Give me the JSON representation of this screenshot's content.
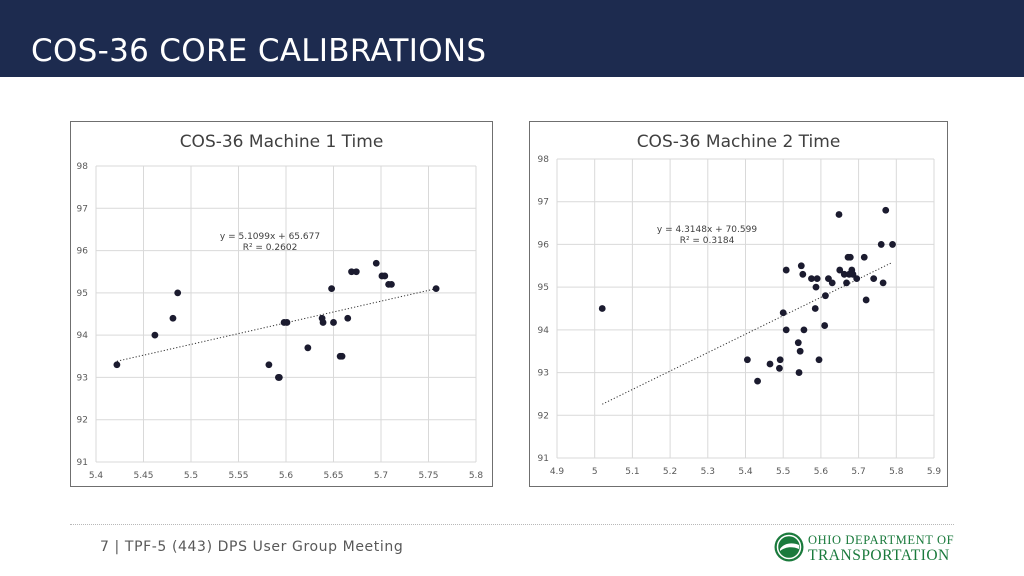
{
  "header": {
    "title": "COS-36 CORE CALIBRATIONS",
    "background": "#1d2b4f"
  },
  "footer": {
    "text": "7 | TPF-5 (443) DPS User Group Meeting"
  },
  "logo": {
    "line1": "OHIO DEPARTMENT OF",
    "line2": "TRANSPORTATION",
    "color": "#1a7a3c"
  },
  "chart_data": [
    {
      "type": "scatter",
      "title": "COS-36 Machine 1 Time",
      "xlim": [
        5.4,
        5.8
      ],
      "ylim": [
        91,
        98
      ],
      "xticks": [
        "5.4",
        "5.45",
        "5.5",
        "5.55",
        "5.6",
        "5.65",
        "5.7",
        "5.75",
        "5.8"
      ],
      "yticks": [
        "91",
        "92",
        "93",
        "94",
        "95",
        "96",
        "97",
        "98"
      ],
      "grid": true,
      "marker_color": "#1b1b2f",
      "trendline": {
        "type": "linear",
        "equation": "y = 5.1099x + 65.677",
        "r2": "R² = 0.2602",
        "slope": 5.1099,
        "intercept": 65.677
      },
      "points": [
        [
          5.422,
          93.3
        ],
        [
          5.462,
          94.0
        ],
        [
          5.481,
          94.4
        ],
        [
          5.486,
          95.0
        ],
        [
          5.582,
          93.3
        ],
        [
          5.592,
          93.0
        ],
        [
          5.593,
          93.0
        ],
        [
          5.598,
          94.3
        ],
        [
          5.601,
          94.3
        ],
        [
          5.623,
          93.7
        ],
        [
          5.638,
          94.4
        ],
        [
          5.639,
          94.3
        ],
        [
          5.648,
          95.1
        ],
        [
          5.65,
          94.3
        ],
        [
          5.657,
          93.5
        ],
        [
          5.659,
          93.5
        ],
        [
          5.665,
          94.4
        ],
        [
          5.669,
          95.5
        ],
        [
          5.674,
          95.5
        ],
        [
          5.695,
          95.7
        ],
        [
          5.701,
          95.4
        ],
        [
          5.704,
          95.4
        ],
        [
          5.708,
          95.2
        ],
        [
          5.711,
          95.2
        ],
        [
          5.758,
          95.1
        ]
      ]
    },
    {
      "type": "scatter",
      "title": "COS-36 Machine 2 Time",
      "xlim": [
        4.9,
        5.9
      ],
      "ylim": [
        91,
        98
      ],
      "xticks": [
        "4.9",
        "5",
        "5.1",
        "5.2",
        "5.3",
        "5.4",
        "5.5",
        "5.6",
        "5.7",
        "5.8",
        "5.9"
      ],
      "yticks": [
        "91",
        "92",
        "93",
        "94",
        "95",
        "96",
        "97",
        "98"
      ],
      "grid": true,
      "marker_color": "#1b1b2f",
      "trendline": {
        "type": "linear",
        "equation": "y = 4.3148x + 70.599",
        "r2": "R² = 0.3184",
        "slope": 4.3148,
        "intercept": 70.599
      },
      "points": [
        [
          5.02,
          94.5
        ],
        [
          5.405,
          93.3
        ],
        [
          5.432,
          92.8
        ],
        [
          5.465,
          93.2
        ],
        [
          5.49,
          93.1
        ],
        [
          5.492,
          93.3
        ],
        [
          5.5,
          94.4
        ],
        [
          5.508,
          95.4
        ],
        [
          5.508,
          94.0
        ],
        [
          5.54,
          93.7
        ],
        [
          5.542,
          93.0
        ],
        [
          5.545,
          93.5
        ],
        [
          5.548,
          95.5
        ],
        [
          5.552,
          95.3
        ],
        [
          5.555,
          94.0
        ],
        [
          5.575,
          95.2
        ],
        [
          5.585,
          94.5
        ],
        [
          5.587,
          95.0
        ],
        [
          5.59,
          95.2
        ],
        [
          5.595,
          93.3
        ],
        [
          5.61,
          94.1
        ],
        [
          5.612,
          94.8
        ],
        [
          5.62,
          95.2
        ],
        [
          5.63,
          95.1
        ],
        [
          5.648,
          96.7
        ],
        [
          5.65,
          95.4
        ],
        [
          5.662,
          95.3
        ],
        [
          5.668,
          95.1
        ],
        [
          5.672,
          95.7
        ],
        [
          5.675,
          95.3
        ],
        [
          5.678,
          95.7
        ],
        [
          5.682,
          95.4
        ],
        [
          5.685,
          95.3
        ],
        [
          5.695,
          95.2
        ],
        [
          5.715,
          95.7
        ],
        [
          5.72,
          94.7
        ],
        [
          5.74,
          95.2
        ],
        [
          5.76,
          96.0
        ],
        [
          5.765,
          95.1
        ],
        [
          5.772,
          96.8
        ],
        [
          5.79,
          96.0
        ]
      ]
    }
  ]
}
